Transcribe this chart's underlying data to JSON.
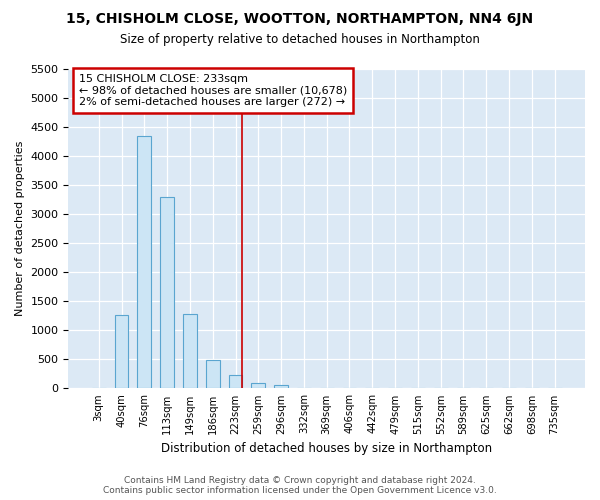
{
  "title1": "15, CHISHOLM CLOSE, WOOTTON, NORTHAMPTON, NN4 6JN",
  "title2": "Size of property relative to detached houses in Northampton",
  "xlabel": "Distribution of detached houses by size in Northampton",
  "ylabel": "Number of detached properties",
  "footer": "Contains HM Land Registry data © Crown copyright and database right 2024.\nContains public sector information licensed under the Open Government Licence v3.0.",
  "bar_labels": [
    "3sqm",
    "40sqm",
    "76sqm",
    "113sqm",
    "149sqm",
    "186sqm",
    "223sqm",
    "259sqm",
    "296sqm",
    "332sqm",
    "369sqm",
    "406sqm",
    "442sqm",
    "479sqm",
    "515sqm",
    "552sqm",
    "589sqm",
    "625sqm",
    "662sqm",
    "698sqm",
    "735sqm"
  ],
  "bar_values": [
    0,
    1270,
    4350,
    3300,
    1280,
    490,
    230,
    100,
    55,
    0,
    0,
    0,
    0,
    0,
    0,
    0,
    0,
    0,
    0,
    0,
    0
  ],
  "bar_color": "#cce5f5",
  "bar_edge_color": "#5aa5d0",
  "highlight_index": 6,
  "highlight_color": "#cc0000",
  "bg_color": "#dce9f5",
  "ylim": [
    0,
    5500
  ],
  "yticks": [
    0,
    500,
    1000,
    1500,
    2000,
    2500,
    3000,
    3500,
    4000,
    4500,
    5000,
    5500
  ],
  "annotation_title": "15 CHISHOLM CLOSE: 233sqm",
  "annotation_line1": "← 98% of detached houses are smaller (10,678)",
  "annotation_line2": "2% of semi-detached houses are larger (272) →",
  "annotation_box_color": "#ffffff",
  "annotation_box_edge": "#cc0000"
}
